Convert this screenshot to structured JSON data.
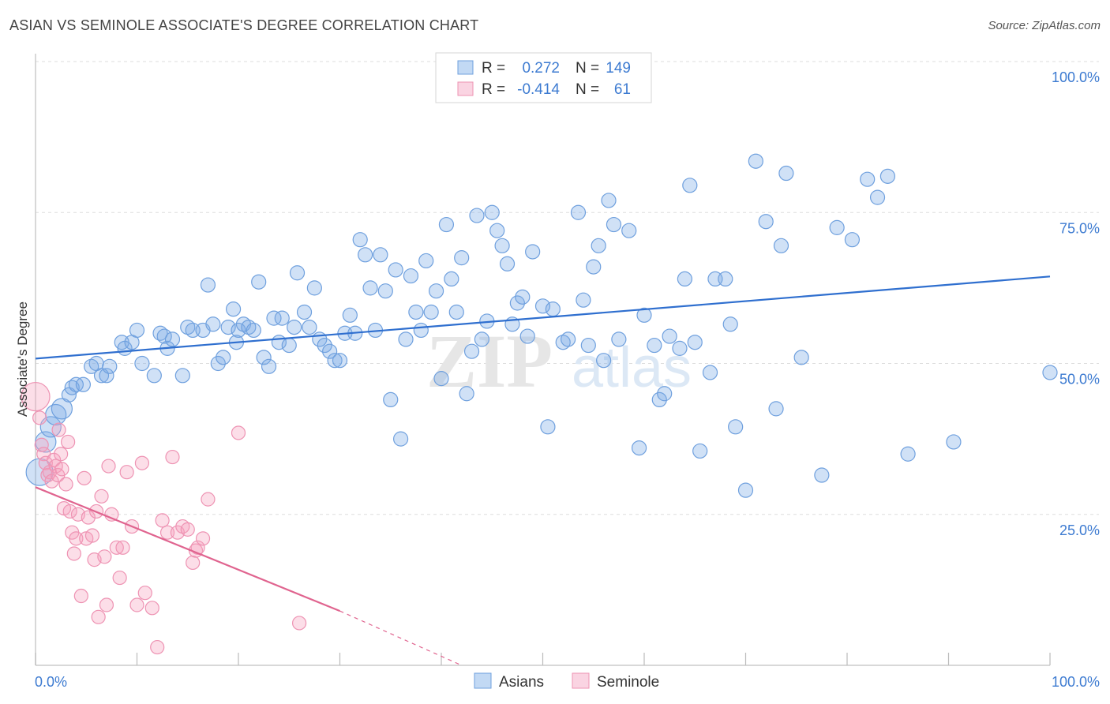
{
  "header": {
    "title": "ASIAN VS SEMINOLE ASSOCIATE'S DEGREE CORRELATION CHART",
    "source": "Source: ZipAtlas.com"
  },
  "watermark": {
    "zip": "ZIP",
    "atlas": "atlas"
  },
  "colors": {
    "asian_fill": "rgba(120,170,230,0.35)",
    "asian_stroke": "#6fa0de",
    "asian_line": "#2f6fcf",
    "seminole_fill": "rgba(245,160,190,0.35)",
    "seminole_stroke": "#ee93b3",
    "seminole_line": "#e0648f",
    "grid": "#dddddd",
    "tick_label": "#3d7bd1"
  },
  "legend_top": {
    "rows": [
      {
        "r_label": "R =",
        "r_value": "0.272",
        "n_label": "N =",
        "n_value": "149",
        "series": "asian"
      },
      {
        "r_label": "R =",
        "r_value": "-0.414",
        "n_label": "N =",
        "n_value": "61",
        "series": "seminole"
      }
    ]
  },
  "legend_bottom": {
    "items": [
      {
        "label": "Asians",
        "series": "asian"
      },
      {
        "label": "Seminole",
        "series": "seminole"
      }
    ]
  },
  "chart_data": {
    "type": "scatter",
    "xlabel": "",
    "ylabel": "Associate's Degree",
    "xlim": [
      0,
      100
    ],
    "ylim": [
      0,
      100
    ],
    "x_tick_labels": [
      "0.0%",
      "100.0%"
    ],
    "y_tick_labels": [
      "25.0%",
      "50.0%",
      "75.0%",
      "100.0%"
    ],
    "y_ticks": [
      25,
      50,
      75,
      100
    ],
    "grid": true,
    "legend_position": "top-center",
    "series": [
      {
        "name": "Asians",
        "trend": {
          "x": [
            0,
            100
          ],
          "y": [
            50.8,
            64.4
          ]
        },
        "points": [
          [
            0.4,
            32
          ],
          [
            1,
            37
          ],
          [
            1.5,
            39.5
          ],
          [
            2,
            41.5
          ],
          [
            2.6,
            42.5
          ],
          [
            3.3,
            44.8
          ],
          [
            3.6,
            46
          ],
          [
            4,
            46.5
          ],
          [
            4.7,
            46.5
          ],
          [
            5.5,
            49.5
          ],
          [
            6,
            50
          ],
          [
            6.5,
            48
          ],
          [
            7,
            48
          ],
          [
            7.3,
            49.5
          ],
          [
            8.5,
            53.5
          ],
          [
            8.8,
            52.5
          ],
          [
            9.5,
            53.5
          ],
          [
            10,
            55.5
          ],
          [
            10.5,
            50
          ],
          [
            11.7,
            48
          ],
          [
            12.3,
            55
          ],
          [
            12.7,
            54.5
          ],
          [
            13,
            52.5
          ],
          [
            13.5,
            54
          ],
          [
            14.5,
            48
          ],
          [
            15,
            56
          ],
          [
            15.5,
            55.5
          ],
          [
            16.5,
            55.5
          ],
          [
            17,
            63
          ],
          [
            17.5,
            56.5
          ],
          [
            18,
            50
          ],
          [
            18.5,
            51
          ],
          [
            19,
            56
          ],
          [
            19.5,
            59
          ],
          [
            19.8,
            53.5
          ],
          [
            20,
            55.5
          ],
          [
            20.5,
            56.5
          ],
          [
            21,
            56
          ],
          [
            21.5,
            55.5
          ],
          [
            22,
            63.5
          ],
          [
            22.5,
            51
          ],
          [
            23,
            49.5
          ],
          [
            23.5,
            57.5
          ],
          [
            24,
            53.5
          ],
          [
            24.3,
            57.5
          ],
          [
            25,
            53
          ],
          [
            25.5,
            56
          ],
          [
            25.8,
            65
          ],
          [
            26.5,
            58.5
          ],
          [
            27,
            56
          ],
          [
            27.5,
            62.5
          ],
          [
            28,
            54
          ],
          [
            28.5,
            53
          ],
          [
            29,
            52
          ],
          [
            29.5,
            50.5
          ],
          [
            30,
            50.5
          ],
          [
            30.5,
            55
          ],
          [
            31,
            58
          ],
          [
            31.5,
            55
          ],
          [
            32,
            70.5
          ],
          [
            32.5,
            68
          ],
          [
            33,
            62.5
          ],
          [
            33.5,
            55.5
          ],
          [
            34,
            68
          ],
          [
            34.5,
            62
          ],
          [
            35,
            44
          ],
          [
            35.5,
            65.5
          ],
          [
            36,
            37.5
          ],
          [
            36.5,
            54
          ],
          [
            37,
            64.5
          ],
          [
            37.5,
            58.5
          ],
          [
            38,
            55.5
          ],
          [
            38.5,
            67
          ],
          [
            39,
            58.5
          ],
          [
            39.5,
            62
          ],
          [
            40,
            47.5
          ],
          [
            40.5,
            73
          ],
          [
            41,
            64
          ],
          [
            41.5,
            58.5
          ],
          [
            42,
            67.5
          ],
          [
            42.5,
            45
          ],
          [
            43,
            52
          ],
          [
            43.5,
            74.5
          ],
          [
            44,
            54
          ],
          [
            44.5,
            57
          ],
          [
            45,
            75
          ],
          [
            45.5,
            72
          ],
          [
            46,
            69.5
          ],
          [
            46.5,
            66.5
          ],
          [
            47,
            56.5
          ],
          [
            47.5,
            60
          ],
          [
            48,
            61
          ],
          [
            48.5,
            54.5
          ],
          [
            49,
            68.5
          ],
          [
            50,
            59.5
          ],
          [
            50.5,
            39.5
          ],
          [
            51,
            59
          ],
          [
            52,
            53.5
          ],
          [
            52.5,
            54
          ],
          [
            53.5,
            75
          ],
          [
            54,
            60.5
          ],
          [
            54.5,
            53
          ],
          [
            55,
            66
          ],
          [
            55.5,
            69.5
          ],
          [
            56,
            50.5
          ],
          [
            56.5,
            77
          ],
          [
            57,
            73
          ],
          [
            57.5,
            54
          ],
          [
            58.5,
            72
          ],
          [
            59.5,
            36
          ],
          [
            60,
            58
          ],
          [
            61,
            53
          ],
          [
            61.5,
            44
          ],
          [
            62,
            45
          ],
          [
            62.5,
            54.5
          ],
          [
            63.5,
            52.5
          ],
          [
            64,
            64
          ],
          [
            64.5,
            79.5
          ],
          [
            65,
            53.5
          ],
          [
            65.5,
            35.5
          ],
          [
            66.5,
            48.5
          ],
          [
            67,
            64
          ],
          [
            68,
            64
          ],
          [
            68.5,
            56.5
          ],
          [
            69,
            39.5
          ],
          [
            70,
            29
          ],
          [
            71,
            83.5
          ],
          [
            72,
            73.5
          ],
          [
            73,
            42.5
          ],
          [
            73.5,
            69.5
          ],
          [
            74,
            81.5
          ],
          [
            75.5,
            51
          ],
          [
            77.5,
            31.5
          ],
          [
            79,
            72.5
          ],
          [
            80.5,
            70.5
          ],
          [
            82,
            80.5
          ],
          [
            83,
            77.5
          ],
          [
            84,
            81
          ],
          [
            86,
            35
          ],
          [
            90.5,
            37
          ],
          [
            100,
            48.5
          ]
        ],
        "point_sizes_note": "larger markers near x≈0 are denser clusters"
      },
      {
        "name": "Seminole",
        "trend": {
          "x": [
            0,
            30
          ],
          "y": [
            29.5,
            9
          ]
        },
        "trend_dashed_to": {
          "x": 42,
          "y": 0
        },
        "points": [
          [
            0,
            44.5
          ],
          [
            0.4,
            41
          ],
          [
            0.6,
            36.5
          ],
          [
            0.8,
            35
          ],
          [
            1,
            33.5
          ],
          [
            1.2,
            31.5
          ],
          [
            1.4,
            32
          ],
          [
            1.6,
            30.5
          ],
          [
            1.8,
            34
          ],
          [
            2,
            33
          ],
          [
            2.2,
            31.5
          ],
          [
            2.3,
            39
          ],
          [
            2.5,
            35
          ],
          [
            2.6,
            32.5
          ],
          [
            2.8,
            26
          ],
          [
            3,
            30
          ],
          [
            3.2,
            37
          ],
          [
            3.4,
            25.5
          ],
          [
            3.6,
            22
          ],
          [
            3.8,
            18.5
          ],
          [
            4,
            21
          ],
          [
            4.2,
            25
          ],
          [
            4.5,
            11.5
          ],
          [
            4.8,
            31
          ],
          [
            5,
            21
          ],
          [
            5.2,
            24.5
          ],
          [
            5.6,
            21.5
          ],
          [
            5.8,
            17.5
          ],
          [
            6,
            25.5
          ],
          [
            6.2,
            8
          ],
          [
            6.5,
            28
          ],
          [
            6.8,
            18
          ],
          [
            7,
            10
          ],
          [
            7.2,
            33
          ],
          [
            7.5,
            25
          ],
          [
            8,
            19.5
          ],
          [
            8.3,
            14.5
          ],
          [
            8.6,
            19.5
          ],
          [
            9,
            32
          ],
          [
            9.5,
            23
          ],
          [
            10,
            10
          ],
          [
            10.5,
            33.5
          ],
          [
            10.8,
            12
          ],
          [
            11.5,
            9.5
          ],
          [
            12,
            3
          ],
          [
            12.5,
            24
          ],
          [
            13,
            22
          ],
          [
            13.5,
            34.5
          ],
          [
            14,
            22
          ],
          [
            14.5,
            23
          ],
          [
            15,
            22.5
          ],
          [
            15.5,
            17
          ],
          [
            15.8,
            19
          ],
          [
            16,
            19.5
          ],
          [
            16.5,
            21
          ],
          [
            17,
            27.5
          ],
          [
            20,
            38.5
          ],
          [
            26,
            7
          ]
        ]
      }
    ]
  }
}
